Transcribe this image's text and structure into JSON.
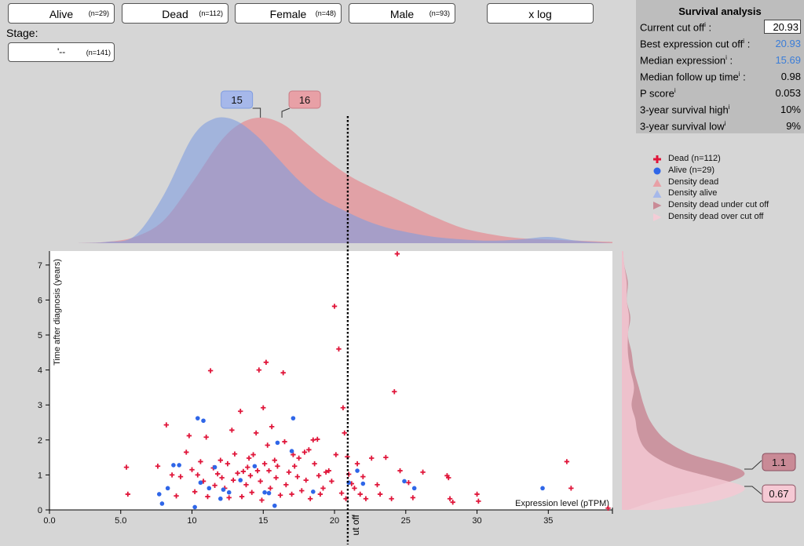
{
  "filters": [
    {
      "label": "Alive",
      "count": "(n=29)"
    },
    {
      "label": "Dead",
      "count": "(n=112)"
    },
    {
      "label": "Female",
      "count": "(n=48)"
    },
    {
      "label": "Male",
      "count": "(n=93)"
    },
    {
      "label": "x log",
      "count": ""
    }
  ],
  "stage": {
    "label": "Stage:",
    "value": "'--",
    "count": "(n=141)"
  },
  "survival": {
    "title": "Survival analysis",
    "rows": [
      {
        "label": "Current cut off",
        "value": "20.93",
        "color": "#000000"
      },
      {
        "label": "Best expression cut off",
        "value": "20.93",
        "color": "#3b7dd8"
      },
      {
        "label": "Median expression",
        "value": "15.69",
        "color": "#3b7dd8"
      },
      {
        "label": "Median follow up time",
        "value": "0.98",
        "color": "#000000"
      },
      {
        "label": "P score",
        "value": "0.053",
        "color": "#000000"
      },
      {
        "label": "3-year survival high",
        "value": "10%",
        "color": "#000000"
      },
      {
        "label": "3-year survival low",
        "value": "9%",
        "color": "#000000"
      }
    ],
    "info_mark": "i",
    "colon": ":"
  },
  "legend": [
    {
      "label": "Dead (n=112)",
      "icon": "plus",
      "color": "#e0163a"
    },
    {
      "label": "Alive (n=29)",
      "icon": "circle",
      "color": "#2f66e8"
    },
    {
      "label": "Density dead",
      "icon": "triangle-up",
      "color": "#e8a0a6"
    },
    {
      "label": "Density alive",
      "icon": "triangle-up",
      "color": "#a6b8ea"
    },
    {
      "label": "Density dead under cut off",
      "icon": "triangle-right",
      "color": "#c98a96"
    },
    {
      "label": "Density dead over cut off",
      "icon": "triangle-right",
      "color": "#f4ccd6"
    }
  ],
  "chart_data": {
    "type": "scatter",
    "xlabel": "Expression level (pTPM)",
    "ylabel": "Time after diagnosis (years)",
    "xlim": [
      0,
      39.5
    ],
    "ylim": [
      0,
      7.4
    ],
    "xticks": [
      "0.0",
      "5.0",
      "10",
      "15",
      "20",
      "25",
      "30",
      "35"
    ],
    "xtick_values": [
      0,
      5,
      10,
      15,
      20,
      25,
      30,
      35
    ],
    "yticks": [
      "0",
      "1",
      "2",
      "3",
      "4",
      "5",
      "6",
      "7"
    ],
    "ytick_values": [
      0,
      1,
      2,
      3,
      4,
      5,
      6,
      7
    ],
    "cutoff": 20.93,
    "cutoff_label": "ut off",
    "peak_alive_label": "15",
    "peak_dead_label": "16",
    "peak_alive_x": 14.8,
    "peak_dead_x": 16.2,
    "right_under_label": "1.1",
    "right_over_label": "0.67",
    "right_under_y": 1.1,
    "right_over_y": 0.67,
    "density_alive": {
      "x": [
        2,
        4,
        6,
        8,
        10,
        11.5,
        13,
        14.5,
        16,
        17.5,
        19,
        20.5,
        22,
        23.5,
        25,
        27,
        29,
        31,
        33,
        35,
        37,
        39.5
      ],
      "y": [
        0,
        0.01,
        0.06,
        0.38,
        0.84,
        0.99,
        0.98,
        0.86,
        0.68,
        0.5,
        0.36,
        0.27,
        0.19,
        0.13,
        0.09,
        0.05,
        0.03,
        0.02,
        0.03,
        0.05,
        0.02,
        0.0
      ]
    },
    "density_dead": {
      "x": [
        2,
        4,
        6,
        8,
        10,
        12,
        13.5,
        15,
        16.5,
        18,
        19.5,
        21,
        22.5,
        24,
        25.5,
        27,
        29,
        31,
        33,
        35,
        37,
        39.5
      ],
      "y": [
        0,
        0.01,
        0.05,
        0.18,
        0.48,
        0.81,
        0.96,
        1.0,
        0.94,
        0.8,
        0.66,
        0.54,
        0.45,
        0.37,
        0.29,
        0.21,
        0.12,
        0.07,
        0.04,
        0.03,
        0.02,
        0.01
      ]
    },
    "density_time_under": {
      "y": [
        0,
        0.3,
        0.6,
        0.9,
        1.1,
        1.3,
        1.6,
        2.0,
        2.5,
        3.0,
        3.5,
        4.0,
        4.5,
        5.0,
        5.5,
        6.0,
        6.5,
        7.0,
        7.4
      ],
      "v": [
        0.05,
        0.32,
        0.68,
        0.96,
        1.0,
        0.86,
        0.56,
        0.36,
        0.24,
        0.18,
        0.14,
        0.1,
        0.08,
        0.05,
        0.07,
        0.04,
        0.05,
        0.02,
        0.01
      ]
    },
    "density_time_over": {
      "y": [
        0,
        0.2,
        0.45,
        0.67,
        0.9,
        1.2,
        1.5,
        1.8,
        2.2,
        2.6,
        3.0,
        3.5,
        4.0,
        4.5,
        5.0,
        5.5,
        6.0,
        6.5,
        7.0,
        7.4
      ],
      "v": [
        0.3,
        0.7,
        0.95,
        1.0,
        0.78,
        0.46,
        0.28,
        0.18,
        0.13,
        0.11,
        0.08,
        0.1,
        0.07,
        0.05,
        0.05,
        0.06,
        0.04,
        0.04,
        0.02,
        0.01
      ]
    },
    "series": [
      {
        "name": "Dead (n=112)",
        "marker": "plus",
        "points": [
          [
            5.4,
            1.22
          ],
          [
            5.5,
            0.45
          ],
          [
            7.6,
            1.25
          ],
          [
            8.2,
            2.43
          ],
          [
            8.6,
            1.0
          ],
          [
            8.9,
            0.4
          ],
          [
            9.2,
            0.95
          ],
          [
            9.6,
            1.65
          ],
          [
            9.8,
            2.12
          ],
          [
            10.0,
            1.15
          ],
          [
            10.2,
            0.52
          ],
          [
            10.4,
            1.0
          ],
          [
            10.6,
            1.38
          ],
          [
            10.8,
            0.82
          ],
          [
            11.0,
            2.08
          ],
          [
            11.1,
            0.38
          ],
          [
            11.3,
            3.98
          ],
          [
            11.5,
            1.2
          ],
          [
            11.6,
            0.7
          ],
          [
            11.8,
            1.03
          ],
          [
            12.0,
            1.42
          ],
          [
            12.1,
            0.92
          ],
          [
            12.3,
            0.62
          ],
          [
            12.5,
            1.32
          ],
          [
            12.6,
            0.35
          ],
          [
            12.8,
            2.28
          ],
          [
            12.9,
            0.85
          ],
          [
            13.0,
            1.6
          ],
          [
            13.2,
            1.05
          ],
          [
            13.4,
            2.82
          ],
          [
            13.5,
            0.38
          ],
          [
            13.6,
            1.1
          ],
          [
            13.8,
            0.72
          ],
          [
            13.9,
            1.22
          ],
          [
            14.0,
            1.48
          ],
          [
            14.1,
            0.98
          ],
          [
            14.2,
            0.5
          ],
          [
            14.3,
            1.58
          ],
          [
            14.5,
            2.2
          ],
          [
            14.6,
            1.12
          ],
          [
            14.7,
            4.0
          ],
          [
            14.8,
            0.82
          ],
          [
            14.9,
            0.28
          ],
          [
            15.0,
            2.92
          ],
          [
            15.1,
            1.32
          ],
          [
            15.2,
            4.22
          ],
          [
            15.3,
            1.85
          ],
          [
            15.4,
            1.12
          ],
          [
            15.5,
            0.62
          ],
          [
            15.6,
            2.38
          ],
          [
            15.8,
            1.42
          ],
          [
            15.9,
            0.92
          ],
          [
            16.0,
            1.25
          ],
          [
            16.2,
            0.42
          ],
          [
            16.4,
            3.92
          ],
          [
            16.5,
            1.95
          ],
          [
            16.6,
            0.72
          ],
          [
            16.8,
            1.08
          ],
          [
            17.0,
            0.45
          ],
          [
            17.1,
            1.58
          ],
          [
            17.2,
            1.25
          ],
          [
            17.4,
            0.95
          ],
          [
            17.5,
            1.48
          ],
          [
            17.7,
            0.55
          ],
          [
            17.9,
            1.65
          ],
          [
            18.0,
            0.85
          ],
          [
            18.2,
            1.72
          ],
          [
            18.3,
            0.32
          ],
          [
            18.5,
            2.0
          ],
          [
            18.6,
            1.32
          ],
          [
            18.8,
            2.02
          ],
          [
            18.9,
            0.98
          ],
          [
            19.0,
            0.45
          ],
          [
            19.2,
            0.62
          ],
          [
            19.4,
            1.08
          ],
          [
            19.6,
            1.12
          ],
          [
            19.8,
            0.82
          ],
          [
            20.0,
            5.82
          ],
          [
            20.1,
            1.58
          ],
          [
            20.3,
            4.6
          ],
          [
            20.5,
            0.48
          ],
          [
            20.6,
            2.92
          ],
          [
            20.7,
            2.2
          ],
          [
            20.8,
            0.32
          ],
          [
            20.9,
            1.52
          ],
          [
            21.0,
            1.02
          ],
          [
            21.2,
            0.75
          ],
          [
            21.4,
            0.62
          ],
          [
            21.6,
            1.32
          ],
          [
            21.8,
            0.45
          ],
          [
            22.0,
            0.95
          ],
          [
            22.2,
            0.32
          ],
          [
            22.6,
            1.48
          ],
          [
            23.0,
            0.72
          ],
          [
            23.2,
            0.45
          ],
          [
            23.6,
            1.5
          ],
          [
            24.0,
            0.32
          ],
          [
            24.2,
            3.38
          ],
          [
            24.4,
            7.32
          ],
          [
            24.6,
            1.12
          ],
          [
            25.2,
            0.78
          ],
          [
            25.5,
            0.35
          ],
          [
            26.2,
            1.08
          ],
          [
            27.9,
            0.98
          ],
          [
            28.0,
            0.92
          ],
          [
            28.1,
            0.32
          ],
          [
            28.3,
            0.22
          ],
          [
            30.0,
            0.45
          ],
          [
            30.1,
            0.25
          ],
          [
            36.3,
            1.38
          ],
          [
            36.6,
            0.62
          ],
          [
            39.2,
            0.05
          ]
        ]
      },
      {
        "name": "Alive (n=29)",
        "marker": "circle",
        "points": [
          [
            7.7,
            0.45
          ],
          [
            7.9,
            0.18
          ],
          [
            8.3,
            0.62
          ],
          [
            8.7,
            1.28
          ],
          [
            9.1,
            1.28
          ],
          [
            10.2,
            0.08
          ],
          [
            10.4,
            2.62
          ],
          [
            10.6,
            0.78
          ],
          [
            10.8,
            2.55
          ],
          [
            11.2,
            0.62
          ],
          [
            11.6,
            1.22
          ],
          [
            12.0,
            0.32
          ],
          [
            12.2,
            0.58
          ],
          [
            12.6,
            0.5
          ],
          [
            13.4,
            0.85
          ],
          [
            14.4,
            1.25
          ],
          [
            15.1,
            0.5
          ],
          [
            15.4,
            0.48
          ],
          [
            15.8,
            0.12
          ],
          [
            16.0,
            1.92
          ],
          [
            17.0,
            1.68
          ],
          [
            17.1,
            2.62
          ],
          [
            18.5,
            0.52
          ],
          [
            21.0,
            0.78
          ],
          [
            21.6,
            1.12
          ],
          [
            22.0,
            0.75
          ],
          [
            24.9,
            0.82
          ],
          [
            25.6,
            0.62
          ],
          [
            34.6,
            0.62
          ]
        ]
      }
    ]
  }
}
